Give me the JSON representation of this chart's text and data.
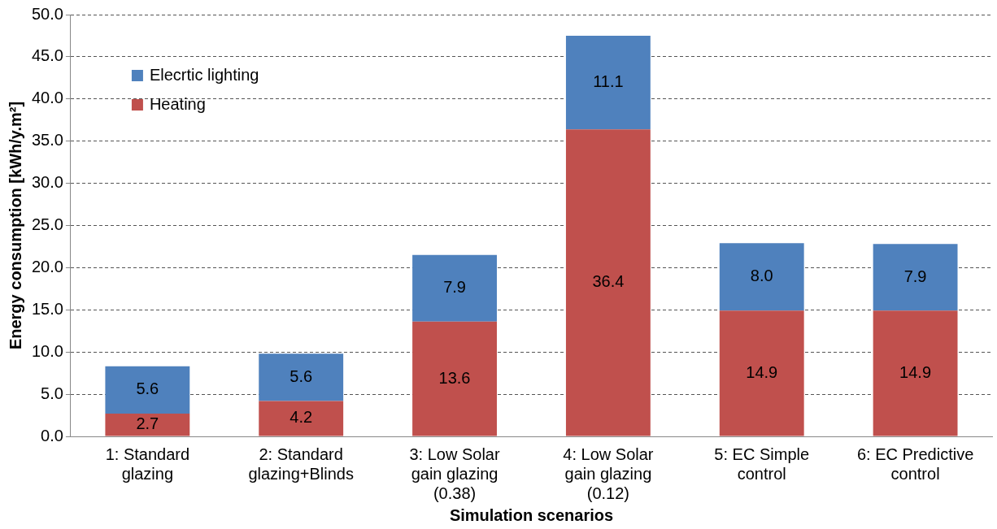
{
  "chart_data": {
    "type": "bar",
    "stacked": true,
    "xlabel": "Simulation scenarios",
    "ylabel": "Energy consumption [kWh/y.m²]",
    "categories": [
      "1: Standard\nglazing",
      "2: Standard\nglazing+Blinds",
      "3: Low Solar\ngain glazing\n(0.38)",
      "4: Low Solar\ngain glazing\n(0.12)",
      "5: EC Simple\ncontrol",
      "6: EC Predictive\ncontrol"
    ],
    "series": [
      {
        "name": "Heating",
        "color": "#c0504d",
        "values": [
          2.7,
          4.2,
          13.6,
          36.4,
          14.9,
          14.9
        ],
        "value_labels": [
          "2.7",
          "4.2",
          "13.6",
          "36.4",
          "14.9",
          "14.9"
        ]
      },
      {
        "name": "Elecrtic lighting",
        "color": "#4f81bd",
        "values": [
          5.6,
          5.6,
          7.9,
          11.1,
          8,
          7.9
        ],
        "value_labels": [
          "5.6",
          "5.6",
          "7.9",
          "11.1",
          "8.0",
          "7.9"
        ]
      }
    ],
    "ylim": [
      0,
      50
    ],
    "yticks": [
      {
        "value": 0,
        "label": "0.0"
      },
      {
        "value": 5,
        "label": "5.0"
      },
      {
        "value": 10,
        "label": "10.0"
      },
      {
        "value": 15,
        "label": "15.0"
      },
      {
        "value": 20,
        "label": "20.0"
      },
      {
        "value": 25,
        "label": "25.0"
      },
      {
        "value": 30,
        "label": "30.0"
      },
      {
        "value": 35,
        "label": "35.0"
      },
      {
        "value": 40,
        "label": "40.0"
      },
      {
        "value": 45,
        "label": "45.0"
      },
      {
        "value": 50,
        "label": "50.0"
      }
    ],
    "grid": "y",
    "legend": "top left"
  }
}
